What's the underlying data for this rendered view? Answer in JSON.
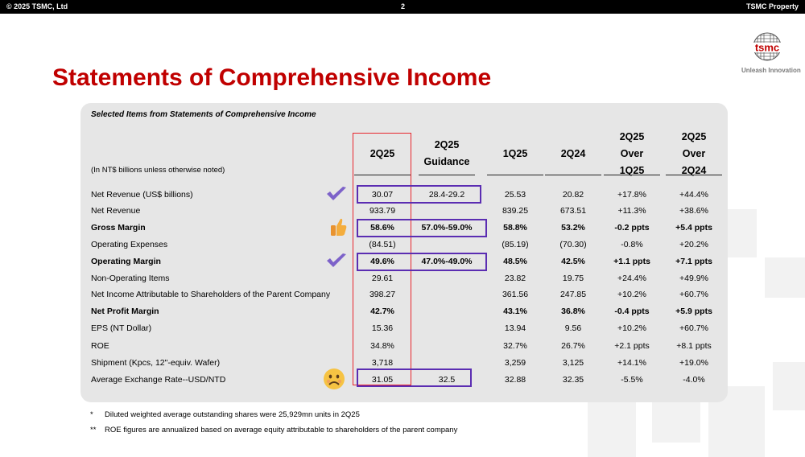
{
  "header": {
    "copyright": "© 2025 TSMC, Ltd",
    "page_number": "2",
    "property": "TSMC Property"
  },
  "brand": {
    "logo_text": "tsmc",
    "tagline": "Unleash Innovation",
    "accent_color": "#c00000"
  },
  "title": "Statements of Comprehensive Income",
  "table": {
    "subtitle": "Selected Items from Statements of Comprehensive Income",
    "unit_note": "(In NT$ billions unless otherwise noted)",
    "columns": [
      {
        "line1": "2Q25",
        "line2": "",
        "line3": ""
      },
      {
        "line1": "2Q25",
        "line2": "Guidance",
        "line3": ""
      },
      {
        "line1": "1Q25",
        "line2": "",
        "line3": ""
      },
      {
        "line1": "2Q24",
        "line2": "",
        "line3": ""
      },
      {
        "line1": "2Q25",
        "line2": "Over",
        "line3": "1Q25"
      },
      {
        "line1": "2Q25",
        "line2": "Over",
        "line3": "2Q24"
      }
    ],
    "rows": [
      {
        "label": "Net Revenue (US$ billions)",
        "bold": false,
        "icon": "check",
        "values": [
          "30.07",
          "28.4-29.2",
          "25.53",
          "20.82",
          "+17.8%",
          "+44.4%"
        ]
      },
      {
        "label": "Net Revenue",
        "bold": false,
        "icon": "",
        "values": [
          "933.79",
          "",
          "839.25",
          "673.51",
          "+11.3%",
          "+38.6%"
        ]
      },
      {
        "label": "Gross Margin",
        "bold": true,
        "icon": "thumb",
        "values": [
          "58.6%",
          "57.0%-59.0%",
          "58.8%",
          "53.2%",
          "-0.2 ppts",
          "+5.4 ppts"
        ]
      },
      {
        "label": "Operating Expenses",
        "bold": false,
        "icon": "",
        "values": [
          "(84.51)",
          "",
          "(85.19)",
          "(70.30)",
          "-0.8%",
          "+20.2%"
        ]
      },
      {
        "label": "Operating Margin",
        "bold": true,
        "icon": "check",
        "values": [
          "49.6%",
          "47.0%-49.0%",
          "48.5%",
          "42.5%",
          "+1.1 ppts",
          "+7.1 ppts"
        ]
      },
      {
        "label": "Non-Operating Items",
        "bold": false,
        "icon": "",
        "values": [
          "29.61",
          "",
          "23.82",
          "19.75",
          "+24.4%",
          "+49.9%"
        ]
      },
      {
        "label": "Net Income Attributable to Shareholders of the Parent Company",
        "bold": false,
        "icon": "",
        "values": [
          "398.27",
          "",
          "361.56",
          "247.85",
          "+10.2%",
          "+60.7%"
        ]
      },
      {
        "label": "Net Profit Margin",
        "bold": true,
        "icon": "",
        "values": [
          "42.7%",
          "",
          "43.1%",
          "36.8%",
          "-0.4 ppts",
          "+5.9 ppts"
        ]
      },
      {
        "label": "EPS (NT Dollar)",
        "bold": false,
        "icon": "",
        "values": [
          "15.36",
          "",
          "13.94",
          "9.56",
          "+10.2%",
          "+60.7%"
        ]
      },
      {
        "label": "ROE",
        "bold": false,
        "icon": "",
        "values": [
          "34.8%",
          "",
          "32.7%",
          "26.7%",
          "+2.1 ppts",
          "+8.1 ppts"
        ]
      },
      {
        "label": "Shipment (Kpcs, 12\"-equiv. Wafer)",
        "bold": false,
        "icon": "",
        "values": [
          "3,718",
          "",
          "3,259",
          "3,125",
          "+14.1%",
          "+19.0%"
        ]
      },
      {
        "label": "Average Exchange Rate--USD/NTD",
        "bold": false,
        "icon": "sad",
        "values": [
          "31.05",
          "32.5",
          "32.88",
          "32.35",
          "-5.5%",
          "-4.0%"
        ]
      }
    ]
  },
  "footnotes": [
    {
      "mark": "*",
      "text": "Diluted weighted average outstanding shares were 25,929mn units in 2Q25"
    },
    {
      "mark": "**",
      "text": "ROE figures are annualized based on average equity attributable to shareholders of the parent company"
    }
  ]
}
